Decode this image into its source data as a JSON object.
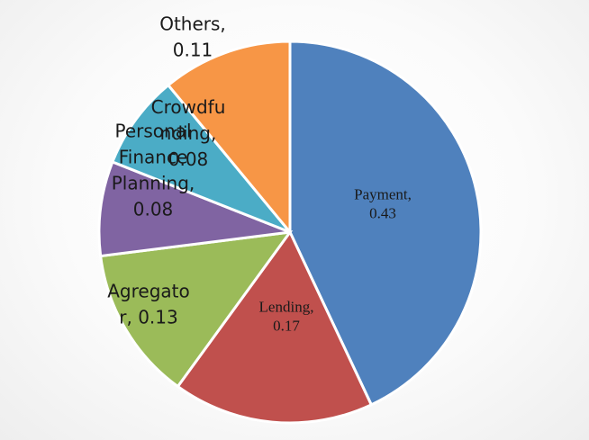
{
  "chart_data": {
    "type": "pie",
    "slices": [
      {
        "name": "Payment",
        "value": 0.43,
        "color": "#4F81BD",
        "label_lines": [
          "Payment,",
          "0.43"
        ],
        "label_style": "serif"
      },
      {
        "name": "Lending",
        "value": 0.17,
        "color": "#C0504D",
        "label_lines": [
          "Lending,",
          "0.17"
        ],
        "label_style": "serif"
      },
      {
        "name": "Agregator",
        "value": 0.13,
        "color": "#9BBB59",
        "label_lines": [
          "Agregato",
          "r, 0.13"
        ],
        "label_style": "sans"
      },
      {
        "name": "Personal Finance Planning",
        "value": 0.08,
        "color": "#8064A2",
        "label_lines": [
          "Personal",
          "Finance",
          "Planning,",
          "0.08"
        ],
        "label_style": "sans"
      },
      {
        "name": "Crowdfunding",
        "value": 0.08,
        "color": "#4BACC6",
        "label_lines": [
          "Crowdfu",
          "nding,",
          "0.08"
        ],
        "label_style": "sans"
      },
      {
        "name": "Others",
        "value": 0.11,
        "color": "#F79646",
        "label_lines": [
          "Others,",
          "0.11"
        ],
        "label_style": "sans"
      }
    ],
    "start_angle": "top (12 o'clock)",
    "direction": "clockwise",
    "legend": "none"
  }
}
